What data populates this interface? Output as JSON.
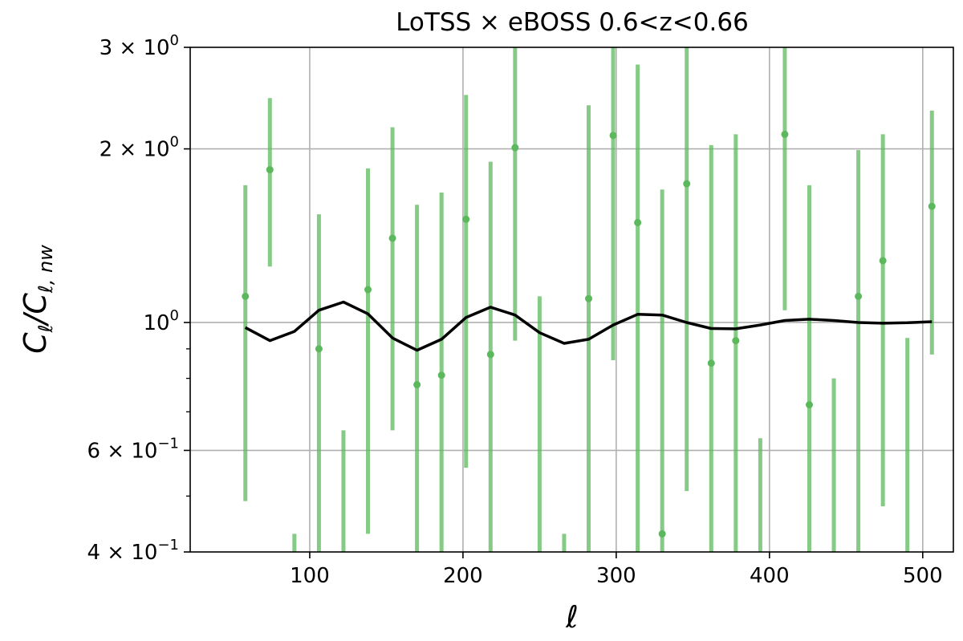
{
  "chart_data": {
    "type": "scatter",
    "title": "LoTSS × eBOSS 0.6<z<0.66",
    "xlabel": "ℓ",
    "ylabel": "C_ℓ/C_ℓ,nw",
    "xlim": [
      22,
      520
    ],
    "ylim": [
      0.4,
      3.0
    ],
    "yscale": "log",
    "grid": true,
    "x_ticks": [
      100,
      200,
      300,
      400,
      500
    ],
    "x_tick_labels": [
      "100",
      "200",
      "300",
      "400",
      "500"
    ],
    "y_ticks": [
      {
        "value": 3.0,
        "mantissa": "3",
        "exponent": "0"
      },
      {
        "value": 2.0,
        "mantissa": "2",
        "exponent": "0"
      },
      {
        "value": 1.0,
        "mantissa": "",
        "exponent": "0"
      },
      {
        "value": 0.6,
        "mantissa": "6",
        "exponent": "−1"
      },
      {
        "value": 0.4,
        "mantissa": "4",
        "exponent": "−1"
      }
    ],
    "y_minor_ticks": [
      0.5,
      0.7,
      0.8,
      0.9
    ],
    "series": [
      {
        "kind": "errorbar",
        "color": "#5cb85c",
        "points": [
          {
            "x": 58,
            "y": 1.11,
            "lo": 0.49,
            "hi": 1.73
          },
          {
            "x": 74,
            "y": 1.84,
            "lo": 1.25,
            "hi": 2.45
          },
          {
            "x": 90,
            "y": null,
            "lo": 0.4,
            "hi": 0.43
          },
          {
            "x": 106,
            "y": 0.9,
            "lo": 0.4,
            "hi": 1.54
          },
          {
            "x": 122,
            "y": null,
            "lo": 0.4,
            "hi": 0.65
          },
          {
            "x": 138,
            "y": 1.14,
            "lo": 0.43,
            "hi": 1.85
          },
          {
            "x": 154,
            "y": 1.4,
            "lo": 0.65,
            "hi": 2.18
          },
          {
            "x": 170,
            "y": 0.78,
            "lo": 0.4,
            "hi": 1.6
          },
          {
            "x": 186,
            "y": 0.81,
            "lo": 0.4,
            "hi": 1.68
          },
          {
            "x": 202,
            "y": 1.51,
            "lo": 0.56,
            "hi": 2.48
          },
          {
            "x": 218,
            "y": 0.88,
            "lo": 0.4,
            "hi": 1.9
          },
          {
            "x": 234,
            "y": 2.01,
            "lo": 0.93,
            "hi": 3.0
          },
          {
            "x": 250,
            "y": null,
            "lo": 0.4,
            "hi": 1.11
          },
          {
            "x": 266,
            "y": null,
            "lo": 0.4,
            "hi": 0.43
          },
          {
            "x": 282,
            "y": 1.1,
            "lo": 0.4,
            "hi": 2.38
          },
          {
            "x": 298,
            "y": 2.11,
            "lo": 0.86,
            "hi": 3.0
          },
          {
            "x": 314,
            "y": 1.49,
            "lo": 0.4,
            "hi": 2.8
          },
          {
            "x": 330,
            "y": 0.43,
            "lo": 0.4,
            "hi": 1.7
          },
          {
            "x": 346,
            "y": 1.74,
            "lo": 0.51,
            "hi": 3.0
          },
          {
            "x": 362,
            "y": 0.85,
            "lo": 0.4,
            "hi": 2.03
          },
          {
            "x": 378,
            "y": 0.93,
            "lo": 0.4,
            "hi": 2.12
          },
          {
            "x": 394,
            "y": null,
            "lo": 0.4,
            "hi": 0.63
          },
          {
            "x": 410,
            "y": 2.12,
            "lo": 1.05,
            "hi": 3.0
          },
          {
            "x": 426,
            "y": 0.72,
            "lo": 0.4,
            "hi": 1.73
          },
          {
            "x": 442,
            "y": null,
            "lo": 0.4,
            "hi": 0.8
          },
          {
            "x": 458,
            "y": 1.11,
            "lo": 0.4,
            "hi": 1.99
          },
          {
            "x": 474,
            "y": 1.28,
            "lo": 0.48,
            "hi": 2.12
          },
          {
            "x": 490,
            "y": null,
            "lo": 0.4,
            "hi": 0.94
          },
          {
            "x": 506,
            "y": 1.59,
            "lo": 0.88,
            "hi": 2.33
          }
        ]
      },
      {
        "kind": "line",
        "color": "#000000",
        "points": [
          {
            "x": 58,
            "y": 0.98
          },
          {
            "x": 74,
            "y": 0.93
          },
          {
            "x": 90,
            "y": 0.965
          },
          {
            "x": 106,
            "y": 1.05
          },
          {
            "x": 122,
            "y": 1.085
          },
          {
            "x": 138,
            "y": 1.035
          },
          {
            "x": 154,
            "y": 0.94
          },
          {
            "x": 170,
            "y": 0.895
          },
          {
            "x": 186,
            "y": 0.935
          },
          {
            "x": 202,
            "y": 1.02
          },
          {
            "x": 218,
            "y": 1.063
          },
          {
            "x": 234,
            "y": 1.03
          },
          {
            "x": 250,
            "y": 0.96
          },
          {
            "x": 266,
            "y": 0.92
          },
          {
            "x": 282,
            "y": 0.935
          },
          {
            "x": 298,
            "y": 0.99
          },
          {
            "x": 314,
            "y": 1.033
          },
          {
            "x": 330,
            "y": 1.03
          },
          {
            "x": 346,
            "y": 1.0
          },
          {
            "x": 362,
            "y": 0.976
          },
          {
            "x": 378,
            "y": 0.975
          },
          {
            "x": 394,
            "y": 0.99
          },
          {
            "x": 410,
            "y": 1.008
          },
          {
            "x": 426,
            "y": 1.013
          },
          {
            "x": 442,
            "y": 1.008
          },
          {
            "x": 458,
            "y": 1.0
          },
          {
            "x": 474,
            "y": 0.997
          },
          {
            "x": 490,
            "y": 0.999
          },
          {
            "x": 506,
            "y": 1.003
          }
        ]
      }
    ]
  }
}
